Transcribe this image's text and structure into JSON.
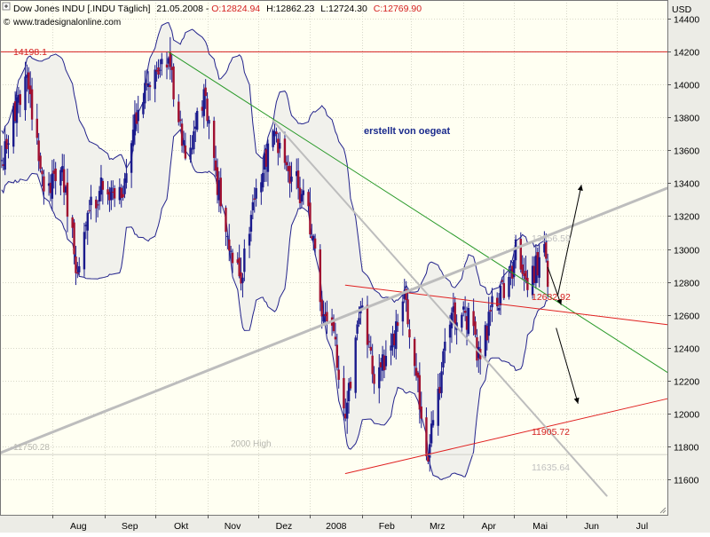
{
  "header": {
    "instrument": "Dow Jones INDU [.INDU  Täglich]",
    "date": "21.05.2008",
    "open": "O:12824.94",
    "high": "H:12862.23",
    "low": "L:12724.30",
    "close": "C:12769.90",
    "source": "www.tradesignalonline.com"
  },
  "colors": {
    "background": "#FFFFF2",
    "grid": "#D8D8C8",
    "candle_up": "#1A1A8C",
    "candle_down": "#A01030",
    "bollinger": "#23238C",
    "bollinger_fill": "#F1F1EC",
    "horizontal_line": "#D42020",
    "green_trendline": "#2A9A2A",
    "red_channel": "#E02020",
    "grey_line": "#BDBDBD"
  },
  "chart_data": {
    "type": "candlestick",
    "unit": "USD",
    "ylim": [
      11500,
      14550
    ],
    "y_ticks": [
      11600,
      11800,
      12000,
      12200,
      12400,
      12600,
      12800,
      13000,
      13200,
      13400,
      13600,
      13800,
      14000,
      14200,
      14400
    ],
    "x_ticks": [
      "Aug",
      "Sep",
      "Okt",
      "Nov",
      "Dez",
      "2008",
      "Feb",
      "Mrz",
      "Apr",
      "Mai",
      "Jun",
      "Jul"
    ],
    "x_ticks_note": "month labels; ticks at month starts, Jul 2007 – Jul 2008",
    "date_range": [
      "2007-07-01",
      "2008-07-31"
    ],
    "last_date": "2008-05-21",
    "annotation_text": "erstellt von oegeat",
    "levels": [
      {
        "label": "14198.1",
        "value": 14198.1,
        "kind": "horizontal"
      },
      {
        "label": "11750.28",
        "value": 11750.28,
        "kind": "horizontal-faint"
      },
      {
        "label": "2000 High",
        "value": 11750.28,
        "kind": "horizontal-faint"
      }
    ],
    "line_labels": [
      {
        "label": "13056.59",
        "value": 13056.59
      },
      {
        "label": "12632.92",
        "value": 12632.92
      },
      {
        "label": "11905.72",
        "value": 11905.72
      },
      {
        "label": "11635.64",
        "value": 11635.64
      }
    ],
    "trendlines": [
      {
        "name": "green",
        "points": [
          [
            "2007-10-09",
            14198
          ],
          [
            "2008-07-31",
            12250
          ]
        ]
      },
      {
        "name": "red-upper",
        "points": [
          [
            "2008-01-22",
            12780
          ],
          [
            "2008-07-31",
            12540
          ]
        ]
      },
      {
        "name": "red-lower",
        "points": [
          [
            "2008-01-22",
            11635
          ],
          [
            "2008-07-31",
            12090
          ]
        ]
      },
      {
        "name": "grey-rising",
        "points": [
          [
            "2007-07-01",
            11760
          ],
          [
            "2008-07-31",
            13370
          ]
        ]
      },
      {
        "name": "grey-falling",
        "points": [
          [
            "2007-12-10",
            13780
          ],
          [
            "2008-06-25",
            11500
          ]
        ]
      }
    ],
    "forecast_arrows": [
      {
        "from": [
          "2008-05-27",
          12720
        ],
        "to": [
          "2008-06-10",
          13390
        ]
      },
      {
        "from": [
          "2008-05-21",
          12890
        ],
        "to": [
          "2008-05-29",
          12660
        ]
      },
      {
        "from": [
          "2008-05-26",
          12520
        ],
        "to": [
          "2008-06-08",
          12060
        ]
      }
    ],
    "price_anchors": [
      [
        "2007-07-02",
        13540
      ],
      [
        "2007-07-17",
        14060
      ],
      [
        "2007-07-27",
        13350
      ],
      [
        "2007-08-06",
        13480
      ],
      [
        "2007-08-16",
        12850
      ],
      [
        "2007-08-22",
        13220
      ],
      [
        "2007-08-31",
        13360
      ],
      [
        "2007-09-11",
        13310
      ],
      [
        "2007-09-19",
        13820
      ],
      [
        "2007-10-01",
        14090
      ],
      [
        "2007-10-09",
        14160
      ],
      [
        "2007-10-19",
        13550
      ],
      [
        "2007-10-31",
        13930
      ],
      [
        "2007-11-09",
        13260
      ],
      [
        "2007-11-21",
        12790
      ],
      [
        "2007-11-30",
        13370
      ],
      [
        "2007-12-10",
        13720
      ],
      [
        "2007-12-21",
        13440
      ],
      [
        "2007-12-31",
        13260
      ],
      [
        "2008-01-08",
        12590
      ],
      [
        "2008-01-15",
        12500
      ],
      [
        "2008-01-22",
        11970
      ],
      [
        "2008-01-31",
        12650
      ],
      [
        "2008-02-08",
        12180
      ],
      [
        "2008-02-15",
        12350
      ],
      [
        "2008-02-27",
        12690
      ],
      [
        "2008-03-10",
        11740
      ],
      [
        "2008-03-14",
        11960
      ],
      [
        "2008-03-24",
        12540
      ],
      [
        "2008-04-01",
        12650
      ],
      [
        "2008-04-11",
        12330
      ],
      [
        "2008-04-17",
        12620
      ],
      [
        "2008-04-30",
        12820
      ],
      [
        "2008-05-02",
        13058
      ],
      [
        "2008-05-09",
        12750
      ],
      [
        "2008-05-19",
        13030
      ],
      [
        "2008-05-21",
        12770
      ]
    ]
  }
}
